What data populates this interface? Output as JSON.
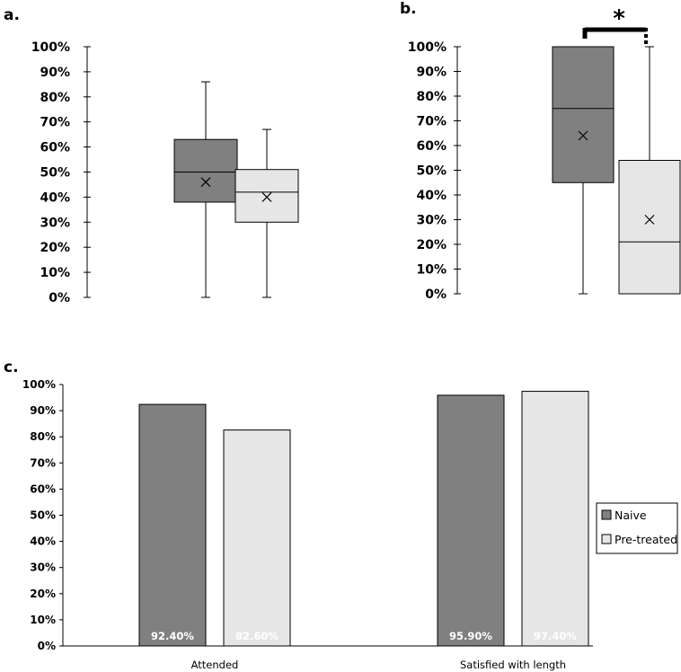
{
  "colors": {
    "naive": "#808080",
    "pretreated": "#e6e6e6",
    "stroke": "#000000"
  },
  "chart_data": [
    {
      "panel": "a.",
      "type": "box",
      "title": "",
      "ylim": [
        0,
        100
      ],
      "yticks": [
        "0%",
        "10%",
        "20%",
        "30%",
        "40%",
        "50%",
        "60%",
        "70%",
        "80%",
        "90%",
        "100%"
      ],
      "series": [
        {
          "name": "Naive",
          "min": 0,
          "q1": 38,
          "median": 50,
          "q3": 63,
          "max": 86,
          "mean": 46
        },
        {
          "name": "Pre-treated",
          "min": 0,
          "q1": 30,
          "median": 42,
          "q3": 51,
          "max": 67,
          "mean": 40
        }
      ]
    },
    {
      "panel": "b.",
      "type": "box",
      "title": "",
      "ylim": [
        0,
        100
      ],
      "yticks": [
        "0%",
        "10%",
        "20%",
        "30%",
        "40%",
        "50%",
        "60%",
        "70%",
        "80%",
        "90%",
        "100%"
      ],
      "significance": "*",
      "series": [
        {
          "name": "Naive",
          "min": 0,
          "q1": 45,
          "median": 75,
          "q3": 100,
          "max": 100,
          "mean": 64
        },
        {
          "name": "Pre-treated",
          "min": 0,
          "q1": 0,
          "median": 21,
          "q3": 54,
          "max": 100,
          "mean": 30
        }
      ]
    },
    {
      "panel": "c.",
      "type": "bar",
      "title": "",
      "ylim": [
        0,
        100
      ],
      "yticks": [
        "0%",
        "10%",
        "20%",
        "30%",
        "40%",
        "50%",
        "60%",
        "70%",
        "80%",
        "90%",
        "100%"
      ],
      "categories": [
        "Attended",
        "Satisfied with length"
      ],
      "series": [
        {
          "name": "Naive",
          "values": [
            92.4,
            95.9
          ],
          "labels": [
            "92.40%",
            "95.90%"
          ]
        },
        {
          "name": "Pre-treated",
          "values": [
            82.6,
            97.4
          ],
          "labels": [
            "82.60%",
            "97.40%"
          ]
        }
      ],
      "legend": "right"
    }
  ]
}
